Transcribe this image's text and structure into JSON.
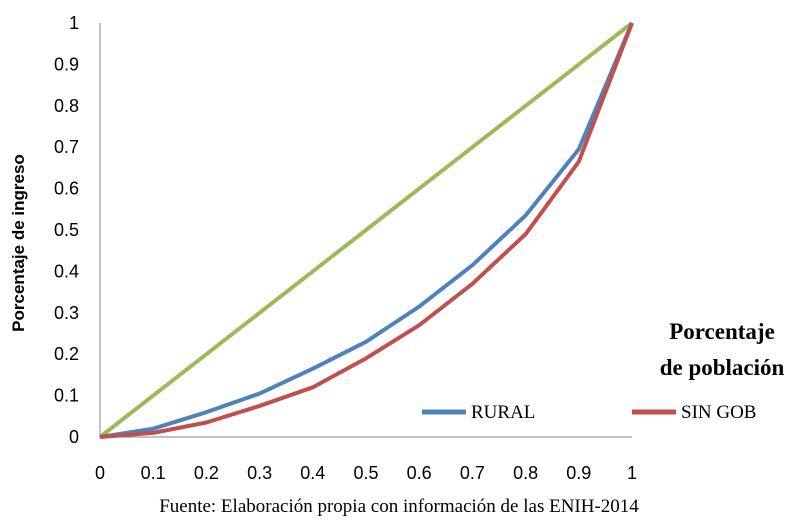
{
  "chart_data": {
    "type": "line",
    "ylabel": "Porcentaje de ingreso",
    "xlabel_line1": "Porcentaje",
    "xlabel_line2": "de población",
    "source": "Fuente: Elaboración propia con información de las ENIH-2014",
    "xlim": [
      0,
      1
    ],
    "ylim": [
      0,
      1
    ],
    "x_ticks": [
      "0",
      "0.1",
      "0.2",
      "0.3",
      "0.4",
      "0.5",
      "0.6",
      "0.7",
      "0.8",
      "0.9",
      "1"
    ],
    "y_ticks": [
      "0",
      "0.1",
      "0.2",
      "0.3",
      "0.4",
      "0.5",
      "0.6",
      "0.7",
      "0.8",
      "0.9",
      "1"
    ],
    "grid": false,
    "legend_position": "bottom-right",
    "series": [
      {
        "name": "",
        "color": "#9bbb59",
        "x": [
          0,
          0.1,
          0.2,
          0.3,
          0.4,
          0.5,
          0.6,
          0.7,
          0.8,
          0.9,
          1
        ],
        "y": [
          0,
          0.1,
          0.2,
          0.3,
          0.4,
          0.5,
          0.6,
          0.7,
          0.8,
          0.9,
          1
        ]
      },
      {
        "name": "RURAL",
        "color": "#4f81bd",
        "x": [
          0,
          0.1,
          0.2,
          0.3,
          0.4,
          0.5,
          0.6,
          0.7,
          0.8,
          0.9,
          1
        ],
        "y": [
          0,
          0.02,
          0.06,
          0.105,
          0.165,
          0.23,
          0.315,
          0.415,
          0.535,
          0.695,
          1
        ]
      },
      {
        "name": "SIN GOB",
        "color": "#c0504d",
        "x": [
          0,
          0.1,
          0.2,
          0.3,
          0.4,
          0.5,
          0.6,
          0.7,
          0.8,
          0.9,
          1
        ],
        "y": [
          0,
          0.01,
          0.035,
          0.075,
          0.12,
          0.19,
          0.27,
          0.37,
          0.49,
          0.665,
          1
        ]
      }
    ]
  }
}
